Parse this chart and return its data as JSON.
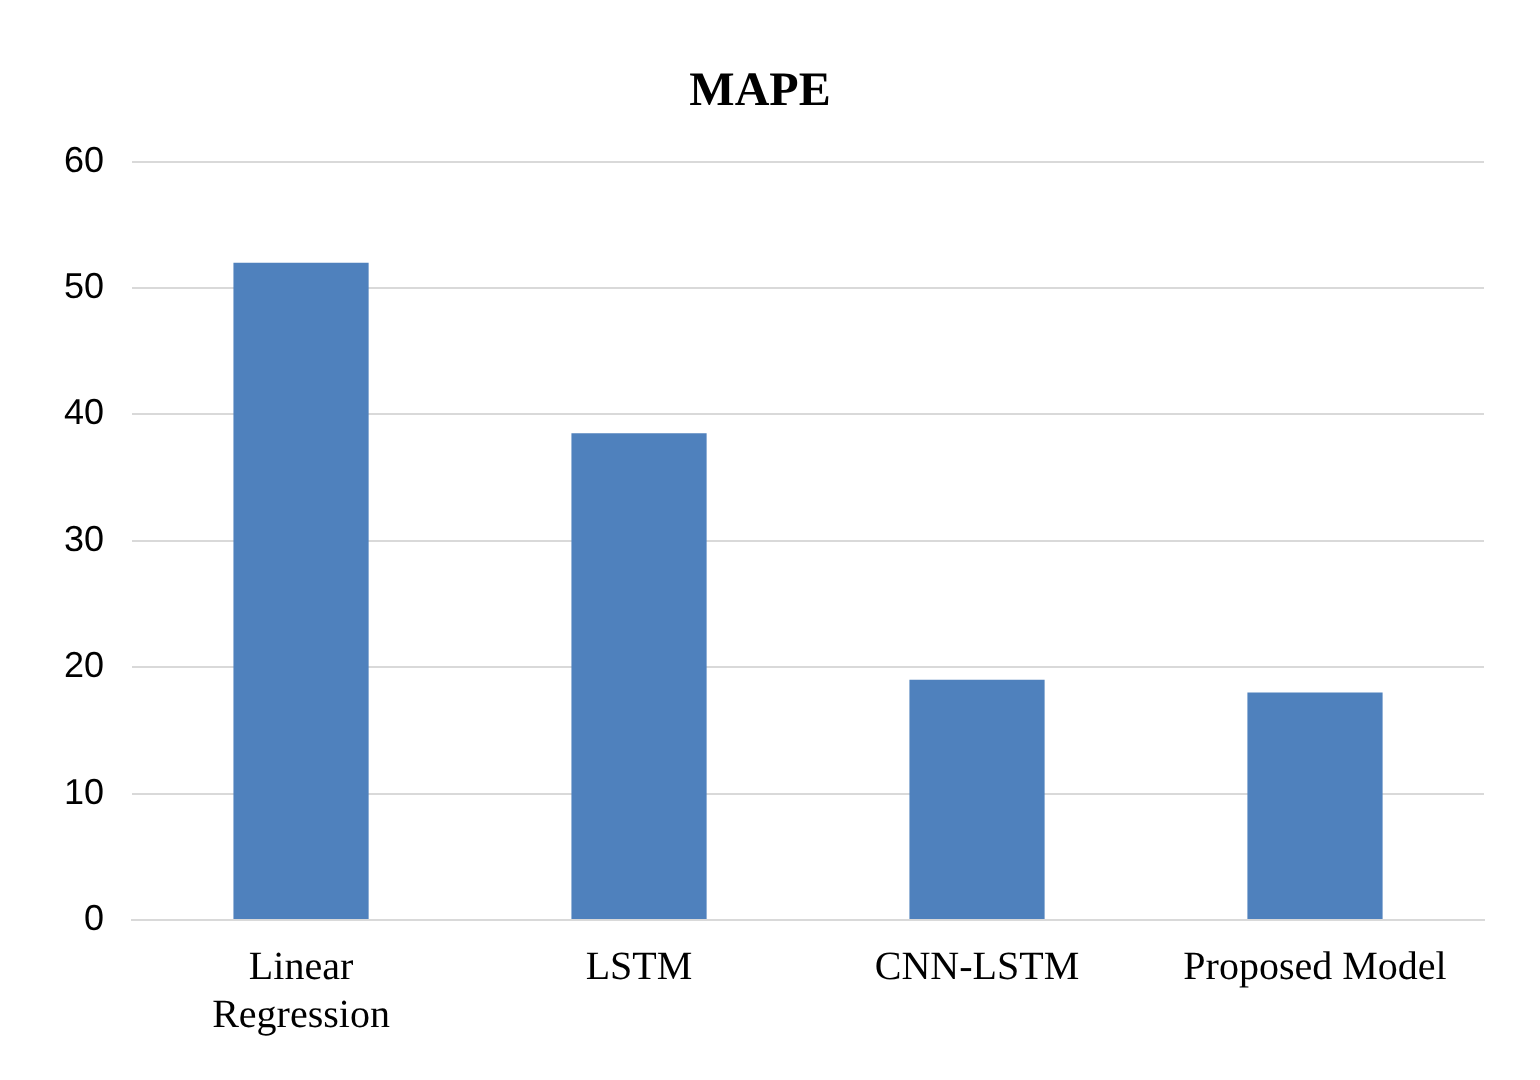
{
  "chart_data": {
    "type": "bar",
    "title": "MAPE",
    "categories": [
      "Linear Regression",
      "LSTM",
      "CNN-LSTM",
      "Proposed Model"
    ],
    "values": [
      52,
      38.5,
      19,
      18
    ],
    "color": "#4f81bd",
    "ylim": [
      0,
      60
    ],
    "yticks": [
      0,
      10,
      20,
      30,
      40,
      50,
      60
    ],
    "grid": "y",
    "legend": false
  }
}
